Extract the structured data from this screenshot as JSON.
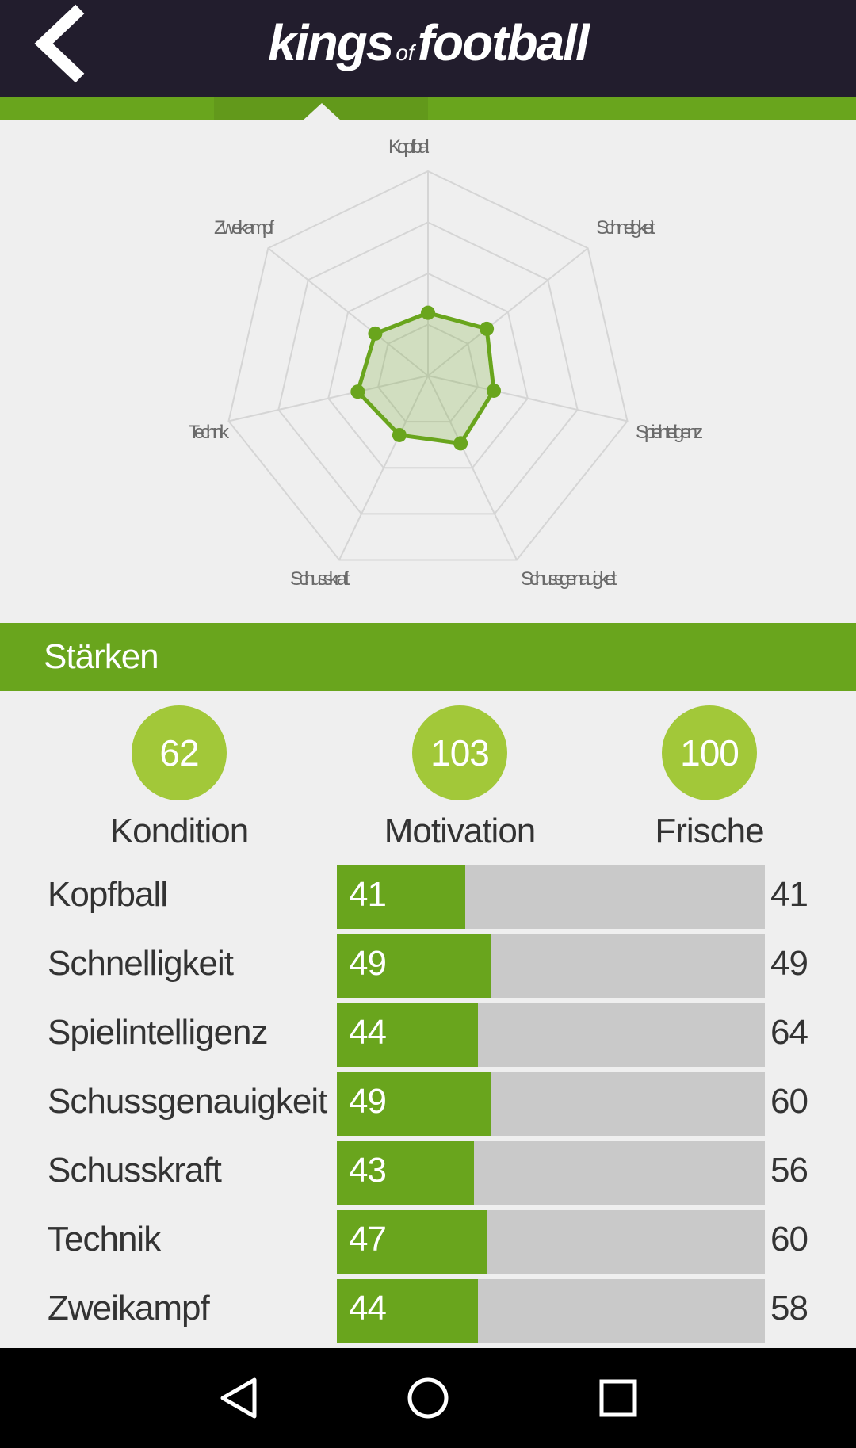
{
  "header": {
    "logo_part1": "kings",
    "logo_part2": "of",
    "logo_part3": "football",
    "back_icon": "chevron-left-icon"
  },
  "radar": {
    "axes": [
      "Kopfball",
      "Schnelligkeit",
      "Spielintelligenz",
      "Schussgenauigkeit",
      "Schusskraft",
      "Technik",
      "Zweikampf"
    ],
    "values": [
      41,
      49,
      44,
      49,
      43,
      47,
      44
    ],
    "max": 200,
    "rings": 4,
    "color": "#69a51d"
  },
  "section": {
    "title": "Stärken"
  },
  "stats": [
    {
      "value": "62",
      "label": "Kondition"
    },
    {
      "value": "103",
      "label": "Motivation"
    },
    {
      "value": "100",
      "label": "Frische"
    }
  ],
  "attributes": [
    {
      "name": "Kopfball",
      "current": "41",
      "max": "41",
      "fill": 0.3
    },
    {
      "name": "Schnelligkeit",
      "current": "49",
      "max": "49",
      "fill": 0.36
    },
    {
      "name": "Spielintelligenz",
      "current": "44",
      "max": "64",
      "fill": 0.33
    },
    {
      "name": "Schussgenauigkeit",
      "current": "49",
      "max": "60",
      "fill": 0.36
    },
    {
      "name": "Schusskraft",
      "current": "43",
      "max": "56",
      "fill": 0.32
    },
    {
      "name": "Technik",
      "current": "47",
      "max": "60",
      "fill": 0.35
    },
    {
      "name": "Zweikampf",
      "current": "44",
      "max": "58",
      "fill": 0.33
    }
  ],
  "colors": {
    "header_bg": "#221d2d",
    "accent_green": "#69a51d",
    "circle_green": "#a2c839",
    "track_gray": "#c9c9c9"
  },
  "navbar": {
    "icons": [
      "back-triangle-icon",
      "home-circle-icon",
      "recents-square-icon"
    ]
  }
}
